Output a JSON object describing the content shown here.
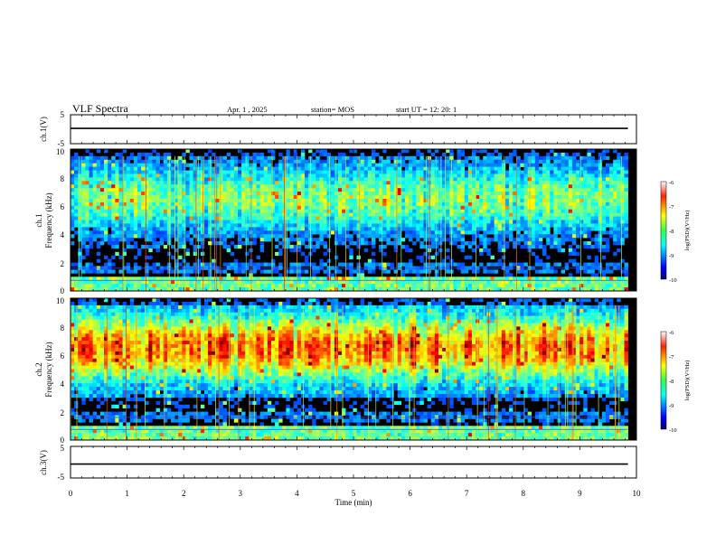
{
  "header": {
    "title": "VLF Spectra",
    "date": "Apr. 1 , 2025",
    "station": "station= MOS",
    "start": "start UT = 12: 20: 1"
  },
  "chart_data": [
    {
      "type": "line",
      "panel": "ch1-voltage",
      "ylabel": "ch.1(V)",
      "ylim": [
        -5,
        5
      ],
      "yticks": [
        "5",
        "-5"
      ],
      "series": [
        {
          "x": [
            0,
            9.85
          ],
          "y": [
            0.3,
            0.3
          ]
        }
      ]
    },
    {
      "type": "heatmap",
      "panel": "ch1-spectrogram",
      "ylabel_1": "ch.1",
      "ylabel_2": "Frequency (kHz)",
      "ylim": [
        0,
        10
      ],
      "yticks": [
        "0",
        "2",
        "4",
        "6",
        "8",
        "10"
      ],
      "data_extent_min": 9.85,
      "band_center_khz": 6.5,
      "band_intensity": 0.48,
      "colorbar": {
        "label": "log(PSD)(V²/Hz)",
        "range": [
          -10,
          -6
        ],
        "ticks": [
          "-6",
          "-7",
          "-8",
          "-9",
          "-10"
        ]
      }
    },
    {
      "type": "heatmap",
      "panel": "ch2-spectrogram",
      "ylabel_1": "ch.2",
      "ylabel_2": "Frequency (kHz)",
      "ylim": [
        0,
        10
      ],
      "yticks": [
        "0",
        "2",
        "4",
        "6",
        "8",
        "10"
      ],
      "data_extent_min": 9.85,
      "band_center_khz": 6.5,
      "band_intensity": 0.82,
      "colorbar": {
        "label": "log(PSD)(V²/Hz)",
        "range": [
          -10,
          -6
        ],
        "ticks": [
          "-6",
          "-7",
          "-8",
          "-9",
          "-10"
        ]
      }
    },
    {
      "type": "line",
      "panel": "ch3-voltage",
      "ylabel": "ch.3(V)",
      "ylim": [
        -5,
        5
      ],
      "yticks": [
        "5",
        "-5"
      ],
      "series": [
        {
          "x": [
            0,
            9.85
          ],
          "y": [
            -0.6,
            -0.6
          ]
        }
      ]
    }
  ],
  "xaxis": {
    "label": "Time (min)",
    "xlim": [
      0,
      10
    ],
    "ticks": [
      "0",
      "1",
      "2",
      "3",
      "4",
      "5",
      "6",
      "7",
      "8",
      "9",
      "10"
    ]
  },
  "colors": {
    "axes": "#000000",
    "background": "#ffffff"
  }
}
